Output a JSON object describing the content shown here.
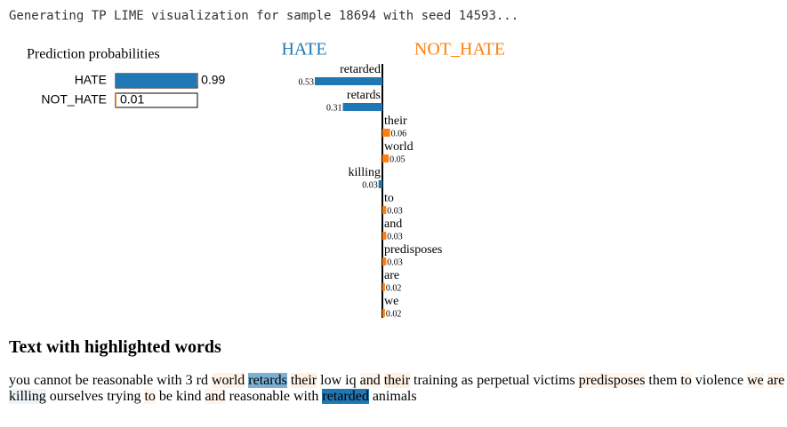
{
  "log": "Generating TP LIME visualization for sample 18694 with seed 14593...",
  "chart_data": [
    {
      "type": "probabilities",
      "title": "Prediction probabilities",
      "categories": [
        "HATE",
        "NOT_HATE"
      ],
      "values": [
        0.99,
        0.01
      ],
      "colors": [
        "#1f77b4",
        "#ff7f0e"
      ]
    },
    {
      "type": "explanation",
      "categories": [
        "retarded",
        "retards",
        "their",
        "world",
        "killing",
        "to",
        "and",
        "predisposes",
        "are",
        "we"
      ],
      "series": [
        {
          "name": "HATE",
          "color": "#1f77b4",
          "values": [
            0.53,
            0.31,
            null,
            null,
            0.03,
            null,
            null,
            null,
            null,
            null
          ]
        },
        {
          "name": "NOT_HATE",
          "color": "#ff7f0e",
          "values": [
            null,
            null,
            0.06,
            0.05,
            null,
            0.03,
            0.03,
            0.03,
            0.02,
            0.02
          ]
        }
      ]
    }
  ],
  "highlighted_text": {
    "title": "Text with highlighted words",
    "words": [
      "you",
      "cannot",
      "be",
      "reasonable",
      "with",
      "3",
      "rd",
      "world",
      "retards",
      "their",
      "low",
      "iq",
      "and",
      "their",
      "training",
      "as",
      "perpetual",
      "victims",
      "predisposes",
      "them",
      "to",
      "violence",
      "we",
      "are",
      "killing",
      "ourselves",
      "trying",
      "to",
      "be",
      "kind",
      "and",
      "reasonable",
      "with",
      "retarded",
      "animals"
    ]
  }
}
